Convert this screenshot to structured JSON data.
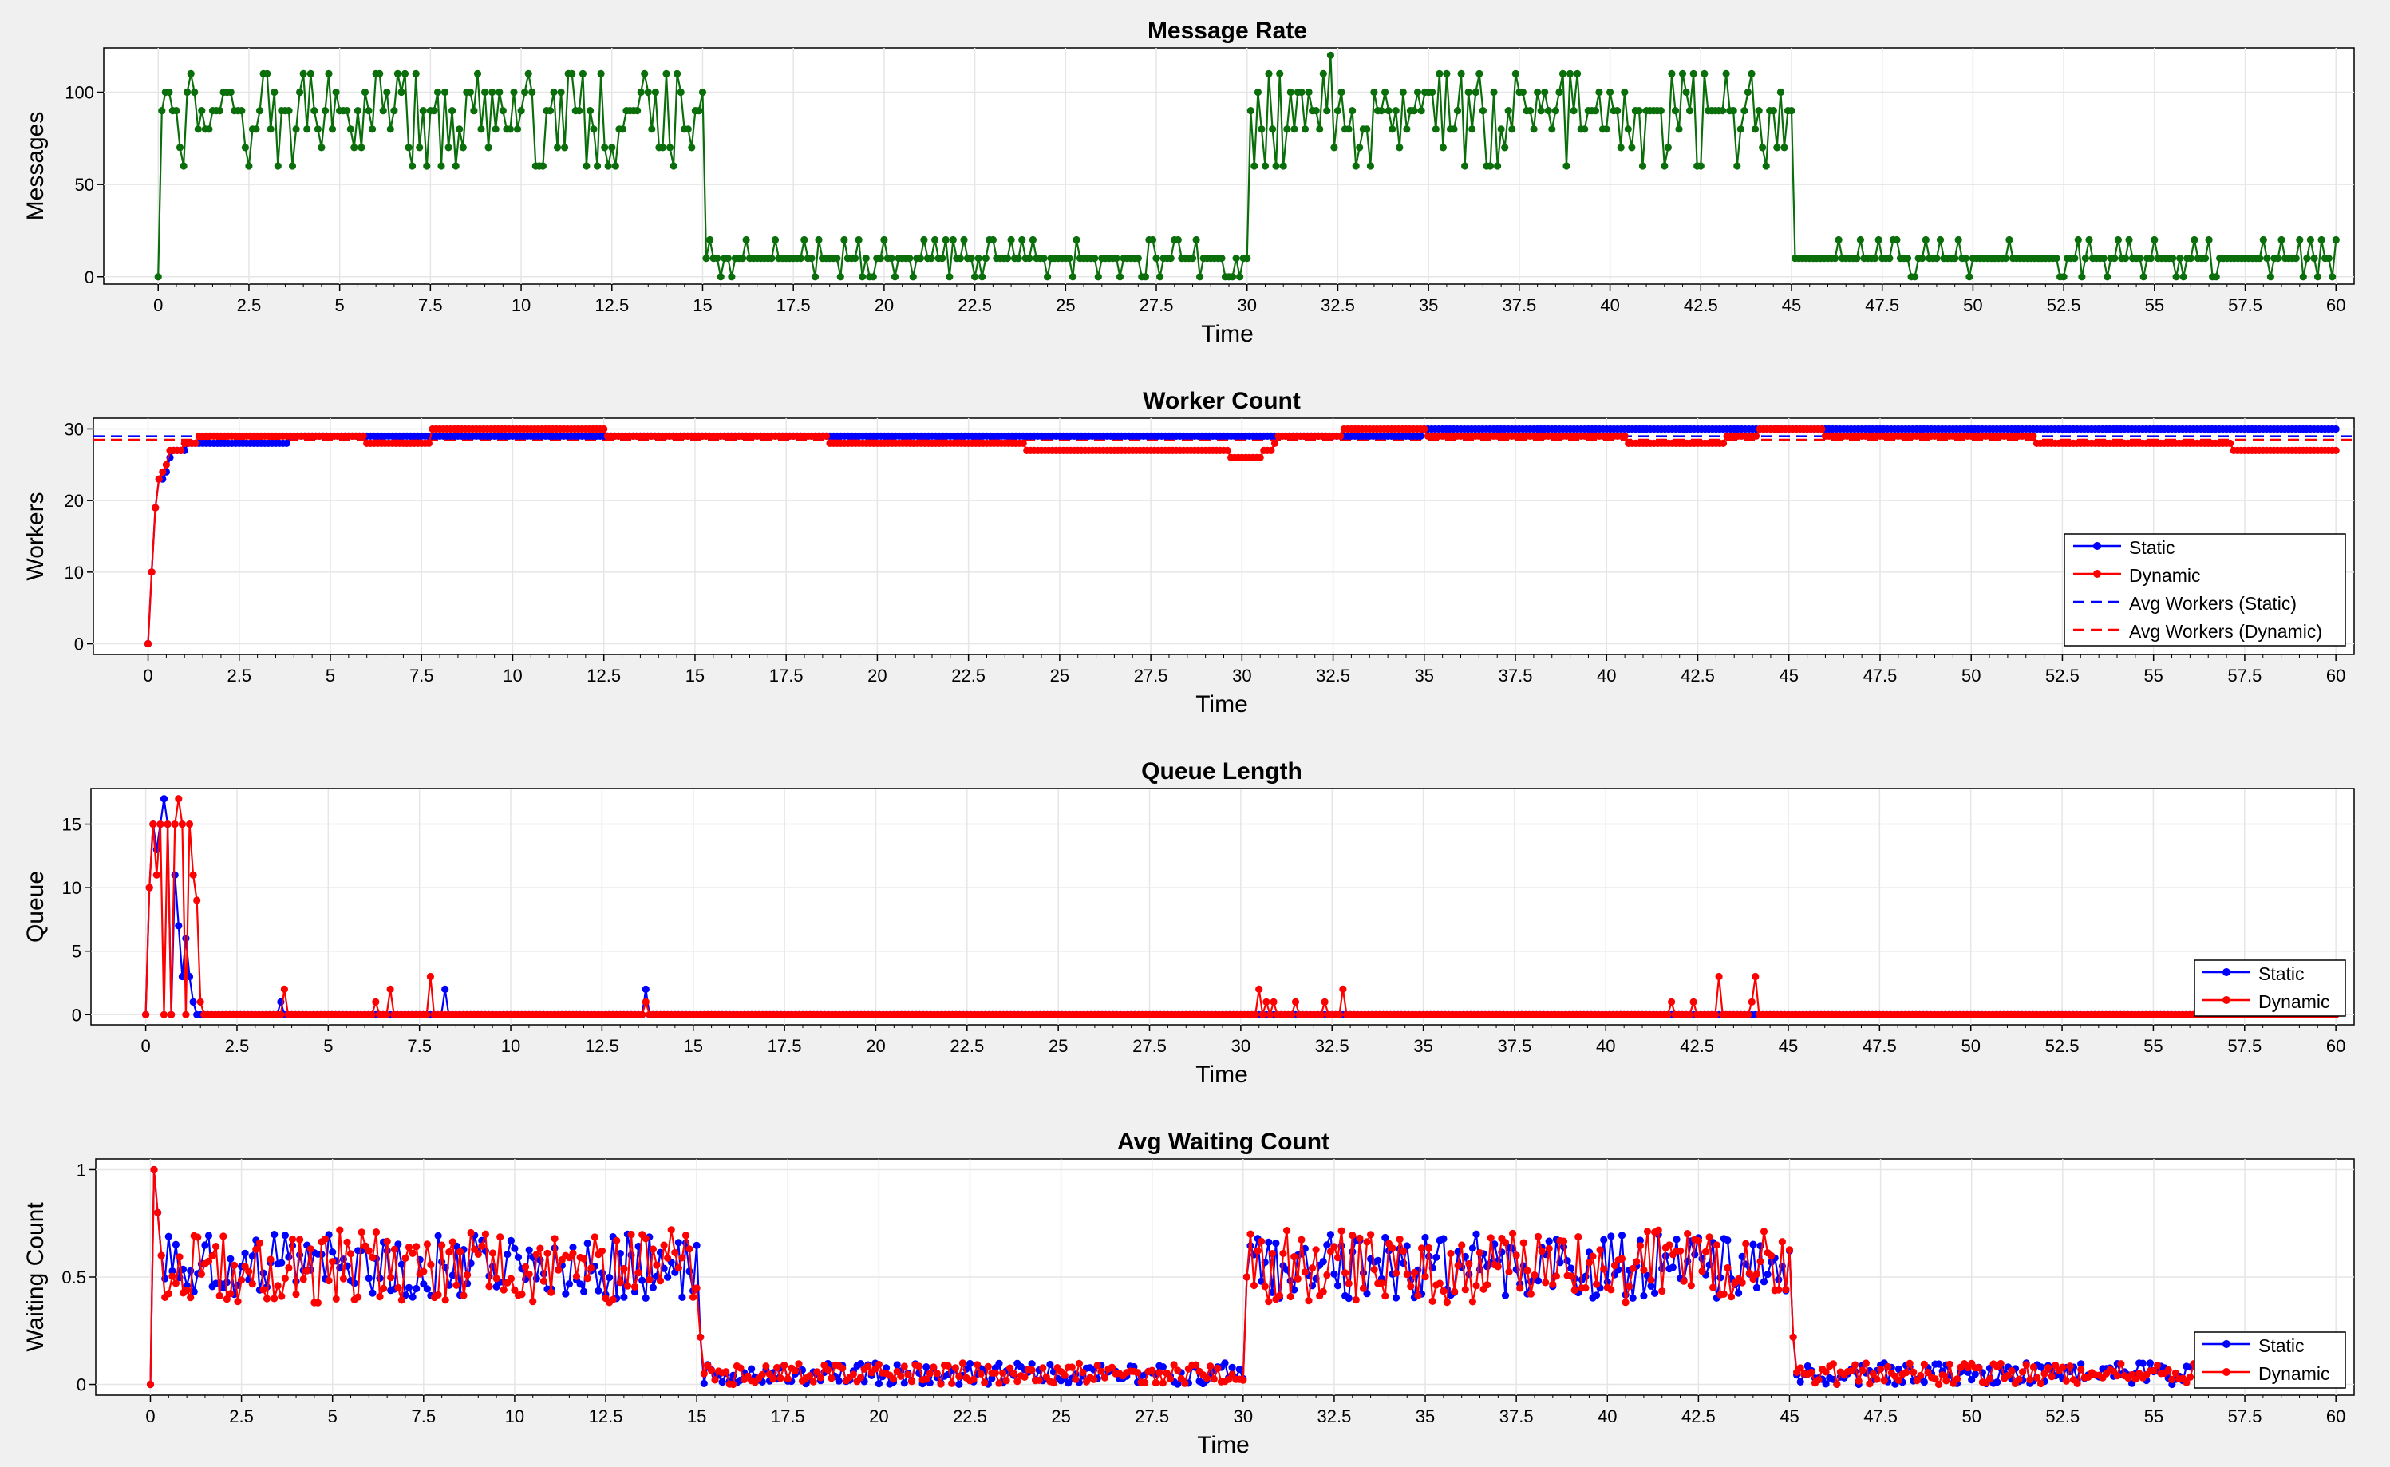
{
  "colors": {
    "message": "#0a6e0a",
    "static": "#0000ff",
    "dynamic": "#ff0000",
    "grid": "#e6e6e6",
    "axis": "#000000",
    "plot_bg": "#ffffff",
    "page_bg": "#f0f0f0"
  },
  "chart_data": [
    {
      "id": "message-rate",
      "type": "line",
      "title": "Message Rate",
      "xlabel": "Time",
      "ylabel": "Messages",
      "xlim": [
        -1.5,
        60.5
      ],
      "ylim": [
        -4,
        124
      ],
      "xticks": [
        0,
        2.5,
        5,
        7.5,
        10,
        12.5,
        15,
        17.5,
        20,
        22.5,
        25,
        27.5,
        30,
        32.5,
        35,
        37.5,
        40,
        42.5,
        45,
        47.5,
        50,
        52.5,
        55,
        57.5,
        60
      ],
      "xtick_labels": [
        "0",
        "2.5",
        "5",
        "7.5",
        "10",
        "12.5",
        "15",
        "17.5",
        "20",
        "22.5",
        "25",
        "27.5",
        "30",
        "32.5",
        "35",
        "37.5",
        "40",
        "42.5",
        "45",
        "47.5",
        "50",
        "52.5",
        "55",
        "57.5",
        "60"
      ],
      "yticks": [
        0,
        50,
        100
      ],
      "ytick_labels": [
        "0",
        "50",
        "100"
      ],
      "grid": true,
      "legend": null,
      "series": [
        {
          "color_key": "message",
          "sampling": "step 0.1 from 0 to 60; levels ~90 (range 60-120) in 0-15 and 30-45, ~10 (range 0-20) in 15-30 and 45-60",
          "x": [
            0,
            0.1,
            0.5,
            1,
            2,
            3,
            4,
            5,
            6,
            7,
            8,
            9,
            10,
            11,
            12,
            13,
            14,
            15,
            15.1,
            16,
            17,
            18,
            19,
            20,
            21,
            22,
            23,
            24,
            25,
            26,
            27,
            28,
            29,
            30,
            30.1,
            31,
            32,
            32.3,
            33,
            34,
            35,
            36,
            37,
            38,
            39,
            40,
            41,
            42,
            43,
            44,
            45,
            45.1,
            46,
            47,
            48,
            49,
            50,
            51,
            52,
            53,
            54,
            55,
            56,
            57,
            58,
            59,
            60
          ],
          "y": [
            0,
            100,
            90,
            100,
            80,
            90,
            110,
            90,
            70,
            90,
            80,
            100,
            90,
            100,
            90,
            80,
            90,
            90,
            10,
            10,
            10,
            10,
            10,
            10,
            10,
            0,
            10,
            10,
            10,
            10,
            10,
            10,
            10,
            10,
            90,
            90,
            90,
            120,
            100,
            80,
            90,
            80,
            90,
            90,
            90,
            90,
            90,
            100,
            90,
            90,
            100,
            10,
            10,
            10,
            10,
            10,
            10,
            10,
            10,
            10,
            10,
            10,
            10,
            10,
            10,
            10,
            10
          ]
        }
      ]
    },
    {
      "id": "worker-count",
      "type": "line",
      "title": "Worker Count",
      "xlabel": "Time",
      "ylabel": "Workers",
      "xlim": [
        -1.5,
        60.5
      ],
      "ylim": [
        -1.5,
        31.5
      ],
      "xticks": [
        0,
        2.5,
        5,
        7.5,
        10,
        12.5,
        15,
        17.5,
        20,
        22.5,
        25,
        27.5,
        30,
        32.5,
        35,
        37.5,
        40,
        42.5,
        45,
        47.5,
        50,
        52.5,
        55,
        57.5,
        60
      ],
      "xtick_labels": [
        "0",
        "2.5",
        "5",
        "7.5",
        "10",
        "12.5",
        "15",
        "17.5",
        "20",
        "22.5",
        "25",
        "27.5",
        "30",
        "32.5",
        "35",
        "37.5",
        "40",
        "42.5",
        "45",
        "47.5",
        "50",
        "52.5",
        "55",
        "57.5",
        "60"
      ],
      "yticks": [
        0,
        10,
        20,
        30
      ],
      "ytick_labels": [
        "0",
        "10",
        "20",
        "30"
      ],
      "grid": true,
      "legend": {
        "position": "lower-right",
        "entries": [
          "Static",
          "Dynamic",
          "Avg Workers (Static)",
          "Avg Workers (Dynamic)"
        ]
      },
      "series": [
        {
          "name": "Static",
          "color_key": "static",
          "sampling": "step 0.1",
          "steps": [
            [
              0,
              0
            ],
            [
              0.1,
              10
            ],
            [
              0.2,
              19
            ],
            [
              0.3,
              23
            ],
            [
              0.5,
              24
            ],
            [
              0.6,
              26
            ],
            [
              0.7,
              27
            ],
            [
              1.0,
              27
            ],
            [
              1.1,
              28
            ],
            [
              3.8,
              28
            ],
            [
              3.9,
              29
            ],
            [
              6.0,
              29
            ],
            [
              8.0,
              29
            ],
            [
              30.0,
              29
            ],
            [
              31.0,
              29
            ],
            [
              35.0,
              30
            ],
            [
              46.0,
              30
            ],
            [
              60.0,
              30
            ]
          ]
        },
        {
          "name": "Dynamic",
          "color_key": "dynamic",
          "sampling": "step 0.1",
          "steps": [
            [
              0,
              0
            ],
            [
              0.1,
              10
            ],
            [
              0.2,
              19
            ],
            [
              0.3,
              23
            ],
            [
              0.4,
              24
            ],
            [
              0.5,
              25
            ],
            [
              0.6,
              27
            ],
            [
              0.8,
              27
            ],
            [
              1.0,
              28
            ],
            [
              1.3,
              28
            ],
            [
              1.4,
              29
            ],
            [
              5.9,
              29
            ],
            [
              6.0,
              28
            ],
            [
              7.7,
              28
            ],
            [
              7.8,
              30
            ],
            [
              12.5,
              30
            ],
            [
              12.6,
              29
            ],
            [
              18.6,
              29
            ],
            [
              18.7,
              28
            ],
            [
              24.0,
              28
            ],
            [
              24.1,
              27
            ],
            [
              29.6,
              27
            ],
            [
              29.7,
              26
            ],
            [
              30.5,
              26
            ],
            [
              30.6,
              27
            ],
            [
              30.9,
              28
            ],
            [
              31.0,
              29
            ],
            [
              32.7,
              29
            ],
            [
              32.8,
              30
            ],
            [
              35.0,
              30
            ],
            [
              35.1,
              29
            ],
            [
              40.5,
              29
            ],
            [
              40.6,
              28
            ],
            [
              43.2,
              28
            ],
            [
              43.3,
              29
            ],
            [
              44.1,
              29
            ],
            [
              44.2,
              30
            ],
            [
              45.9,
              30
            ],
            [
              46.0,
              29
            ],
            [
              51.7,
              29
            ],
            [
              51.8,
              28
            ],
            [
              57.1,
              28
            ],
            [
              57.2,
              27
            ],
            [
              60.0,
              27
            ]
          ]
        },
        {
          "name": "Avg Workers (Static)",
          "color_key": "static",
          "style": "dashed",
          "hline": 29.0
        },
        {
          "name": "Avg Workers (Dynamic)",
          "color_key": "dynamic",
          "style": "dashed",
          "hline": 28.5
        }
      ]
    },
    {
      "id": "queue-length",
      "type": "line",
      "title": "Queue Length",
      "xlabel": "Time",
      "ylabel": "Queue",
      "xlim": [
        -1.5,
        60.5
      ],
      "ylim": [
        -0.8,
        17.8
      ],
      "xticks": [
        0,
        2.5,
        5,
        7.5,
        10,
        12.5,
        15,
        17.5,
        20,
        22.5,
        25,
        27.5,
        30,
        32.5,
        35,
        37.5,
        40,
        42.5,
        45,
        47.5,
        50,
        52.5,
        55,
        57.5,
        60
      ],
      "xtick_labels": [
        "0",
        "2.5",
        "5",
        "7.5",
        "10",
        "12.5",
        "15",
        "17.5",
        "20",
        "22.5",
        "25",
        "27.5",
        "30",
        "32.5",
        "35",
        "37.5",
        "40",
        "42.5",
        "45",
        "47.5",
        "50",
        "52.5",
        "55",
        "57.5",
        "60"
      ],
      "yticks": [
        0,
        5,
        10,
        15
      ],
      "ytick_labels": [
        "0",
        "5",
        "10",
        "15"
      ],
      "grid": true,
      "legend": {
        "position": "lower-right",
        "entries": [
          "Static",
          "Dynamic"
        ]
      },
      "series": [
        {
          "name": "Static",
          "color_key": "static",
          "sampling": "step 0.1, 0 where not listed",
          "points": [
            [
              0,
              0
            ],
            [
              0.1,
              10
            ],
            [
              0.2,
              15
            ],
            [
              0.3,
              13
            ],
            [
              0.4,
              15
            ],
            [
              0.5,
              17
            ],
            [
              0.6,
              15
            ],
            [
              0.8,
              11
            ],
            [
              0.9,
              7
            ],
            [
              1.0,
              3
            ],
            [
              1.1,
              6
            ],
            [
              1.2,
              3
            ],
            [
              1.3,
              1
            ],
            [
              1.4,
              0
            ],
            [
              3.7,
              1
            ],
            [
              8.2,
              2
            ],
            [
              13.7,
              2
            ],
            [
              30.7,
              0
            ]
          ]
        },
        {
          "name": "Dynamic",
          "color_key": "dynamic",
          "sampling": "step 0.1, 0 where not listed",
          "points": [
            [
              0,
              0
            ],
            [
              0.1,
              10
            ],
            [
              0.2,
              15
            ],
            [
              0.3,
              11
            ],
            [
              0.4,
              15
            ],
            [
              0.6,
              15
            ],
            [
              0.8,
              15
            ],
            [
              0.9,
              17
            ],
            [
              1.0,
              15
            ],
            [
              1.2,
              15
            ],
            [
              1.3,
              11
            ],
            [
              1.4,
              9
            ],
            [
              1.5,
              1
            ],
            [
              1.6,
              0
            ],
            [
              3.8,
              2
            ],
            [
              6.3,
              1
            ],
            [
              6.7,
              2
            ],
            [
              7.8,
              3
            ],
            [
              13.7,
              1
            ],
            [
              30.5,
              2
            ],
            [
              30.7,
              1
            ],
            [
              30.9,
              1
            ],
            [
              31.5,
              1
            ],
            [
              32.3,
              1
            ],
            [
              32.8,
              2
            ],
            [
              41.8,
              1
            ],
            [
              42.4,
              1
            ],
            [
              43.1,
              3
            ],
            [
              44.0,
              1
            ],
            [
              44.1,
              3
            ]
          ]
        }
      ]
    },
    {
      "id": "avg-waiting-count",
      "type": "line",
      "title": "Avg Waiting Count",
      "xlabel": "Time",
      "ylabel": "Waiting Count",
      "xlim": [
        -1.5,
        60.5
      ],
      "ylim": [
        -0.05,
        1.05
      ],
      "xticks": [
        0,
        2.5,
        5,
        7.5,
        10,
        12.5,
        15,
        17.5,
        20,
        22.5,
        25,
        27.5,
        30,
        32.5,
        35,
        37.5,
        40,
        42.5,
        45,
        47.5,
        50,
        52.5,
        55,
        57.5,
        60
      ],
      "xtick_labels": [
        "0",
        "2.5",
        "5",
        "7.5",
        "10",
        "12.5",
        "15",
        "17.5",
        "20",
        "22.5",
        "25",
        "27.5",
        "30",
        "32.5",
        "35",
        "37.5",
        "40",
        "42.5",
        "45",
        "47.5",
        "50",
        "52.5",
        "55",
        "57.5",
        "60"
      ],
      "yticks": [
        0,
        0.5,
        1
      ],
      "ytick_labels": [
        "0",
        "0.5",
        "1"
      ],
      "grid": true,
      "legend": {
        "position": "lower-right",
        "entries": [
          "Static",
          "Dynamic"
        ]
      },
      "series": [
        {
          "name": "Static",
          "color_key": "static",
          "sampling": "step 0.1; ~0.55 (range 0.38-0.7) in 0-15 and 30-45, ~0.05 (range 0.0-0.1) in 15-30 and 45-60",
          "x": [
            0,
            0.1,
            0.2,
            1,
            5,
            10,
            14.9,
            15.1,
            15.3,
            20,
            25,
            29.9,
            30.2,
            31,
            35,
            40,
            44.9,
            45.1,
            45.3,
            50,
            55,
            60
          ],
          "y": [
            0,
            1,
            0.8,
            0.55,
            0.55,
            0.55,
            0.6,
            0.2,
            0.05,
            0.05,
            0.05,
            0.06,
            0.6,
            0.6,
            0.55,
            0.5,
            0.55,
            0.25,
            0.05,
            0.05,
            0.05,
            0.05
          ]
        },
        {
          "name": "Dynamic",
          "color_key": "dynamic",
          "sampling": "step 0.1; ~0.55 (range 0.35-0.72) in 0-15 and 30-45, ~0.05 (range 0.0-0.1) in 15-30 and 45-60",
          "x": [
            0,
            0.1,
            0.2,
            1,
            5,
            10,
            14.9,
            15.1,
            15.3,
            20,
            25,
            29.9,
            30.2,
            31,
            35,
            40,
            44.9,
            45.1,
            45.3,
            50,
            55,
            60
          ],
          "y": [
            0,
            1,
            0.8,
            0.6,
            0.55,
            0.55,
            0.55,
            0.15,
            0.05,
            0.05,
            0.05,
            0.06,
            0.6,
            0.65,
            0.55,
            0.55,
            0.6,
            0.2,
            0.05,
            0.05,
            0.05,
            0.05
          ]
        }
      ]
    }
  ]
}
